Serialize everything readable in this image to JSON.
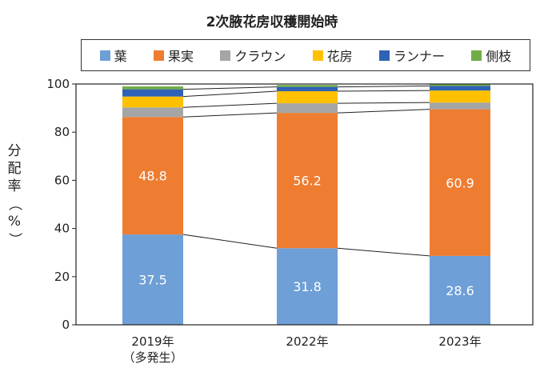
{
  "chart_data": {
    "type": "bar",
    "stacked": true,
    "title": "2次腋花房収穫開始時",
    "ylabel": "分配率（%）",
    "ylim": [
      0,
      100
    ],
    "yticks": [
      0,
      20,
      40,
      60,
      80,
      100
    ],
    "categories": [
      "2019年\n（多発生）",
      "2022年",
      "2023年"
    ],
    "series": [
      {
        "name": "葉",
        "color": "#6e9fd7",
        "values": [
          37.5,
          31.8,
          28.6
        ],
        "labels": [
          "37.5",
          "31.8",
          "28.6"
        ]
      },
      {
        "name": "果実",
        "color": "#ee7d31",
        "values": [
          48.8,
          56.2,
          60.9
        ],
        "labels": [
          "48.8",
          "56.2",
          "60.9"
        ]
      },
      {
        "name": "クラウン",
        "color": "#a5a5a5",
        "values": [
          4.0,
          4.0,
          2.8
        ]
      },
      {
        "name": "花房",
        "color": "#ffc000",
        "values": [
          4.5,
          5.0,
          5.0
        ]
      },
      {
        "name": "ランナー",
        "color": "#2e62b5",
        "values": [
          3.0,
          1.8,
          1.9
        ]
      },
      {
        "name": "側枝",
        "color": "#70ad47",
        "values": [
          1.2,
          0.8,
          0.7
        ]
      }
    ],
    "legend_position": "top",
    "grid": false,
    "connector_lines": true
  }
}
